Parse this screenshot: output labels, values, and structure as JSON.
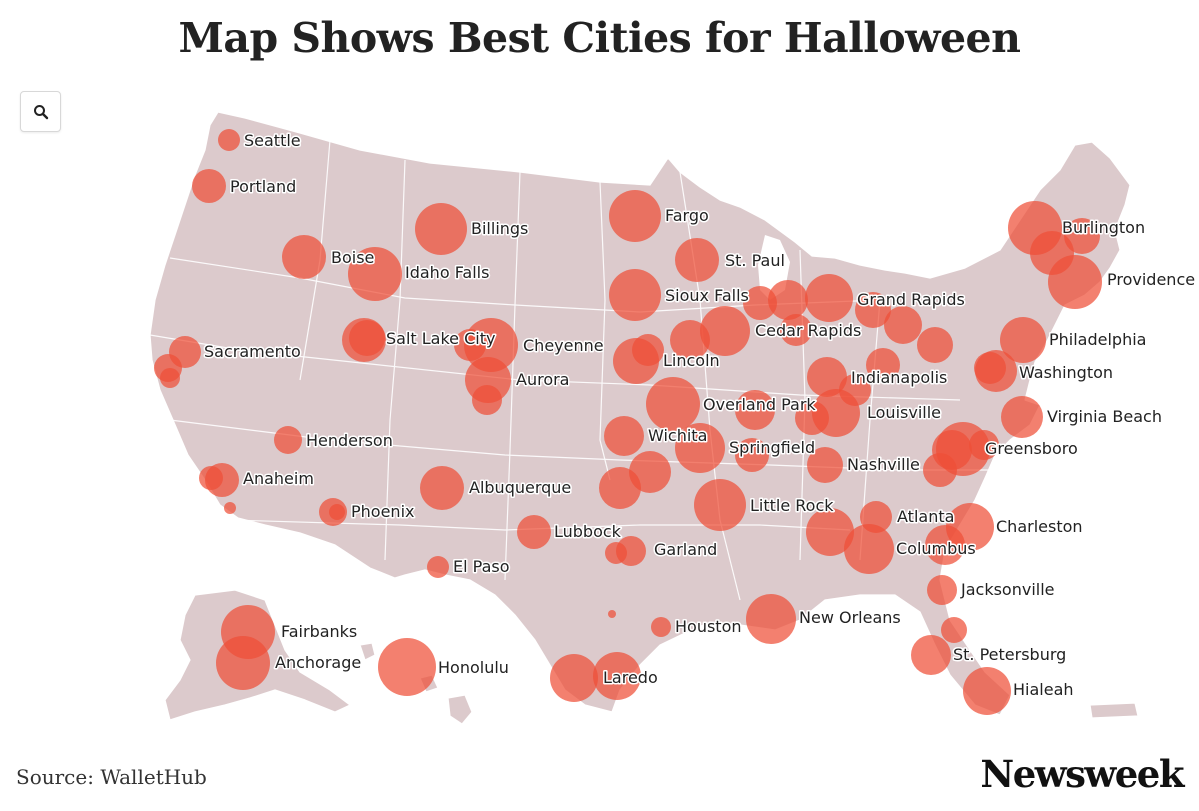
{
  "title": "Map Shows Best Cities for Halloween",
  "zoom_button_icon": "magnifier-icon",
  "source": "Source: WalletHub",
  "brand": "Newsweek",
  "colors": {
    "land": "#dccacc",
    "border": "#ffffff",
    "bubble": "#ef4f38",
    "bubble_core": "#e8331c"
  },
  "labels": {
    "seattle": "Seattle",
    "portland": "Portland",
    "boise": "Boise",
    "idaho_falls": "Idaho Falls",
    "billings": "Billings",
    "fargo": "Fargo",
    "st_paul": "St. Paul",
    "sioux_falls": "Sioux Falls",
    "grand_rapids": "Grand Rapids",
    "cedar_rapids": "Cedar Rapids",
    "burlington": "Burlington",
    "providence": "Providence",
    "philadelphia": "Philadelphia",
    "washington": "Washington",
    "sacramento": "Sacramento",
    "salt_lake_city": "Salt Lake City",
    "cheyenne": "Cheyenne",
    "lincoln": "Lincoln",
    "aurora": "Aurora",
    "indianapolis": "Indianapolis",
    "overland_park": "Overland Park",
    "louisville": "Louisville",
    "virginia_beach": "Virginia Beach",
    "henderson": "Henderson",
    "wichita": "Wichita",
    "springfield": "Springfield",
    "greensboro": "Greensboro",
    "nashville": "Nashville",
    "anaheim": "Anaheim",
    "albuquerque": "Albuquerque",
    "phoenix": "Phoenix",
    "little_rock": "Little Rock",
    "atlanta": "Atlanta",
    "charleston": "Charleston",
    "lubbock": "Lubbock",
    "columbus": "Columbus",
    "garland": "Garland",
    "el_paso": "El Paso",
    "jacksonville": "Jacksonville",
    "houston": "Houston",
    "new_orleans": "New Orleans",
    "fairbanks": "Fairbanks",
    "anchorage": "Anchorage",
    "honolulu": "Honolulu",
    "st_petersburg": "St. Petersburg",
    "laredo": "Laredo",
    "hialeah": "Hialeah"
  }
}
